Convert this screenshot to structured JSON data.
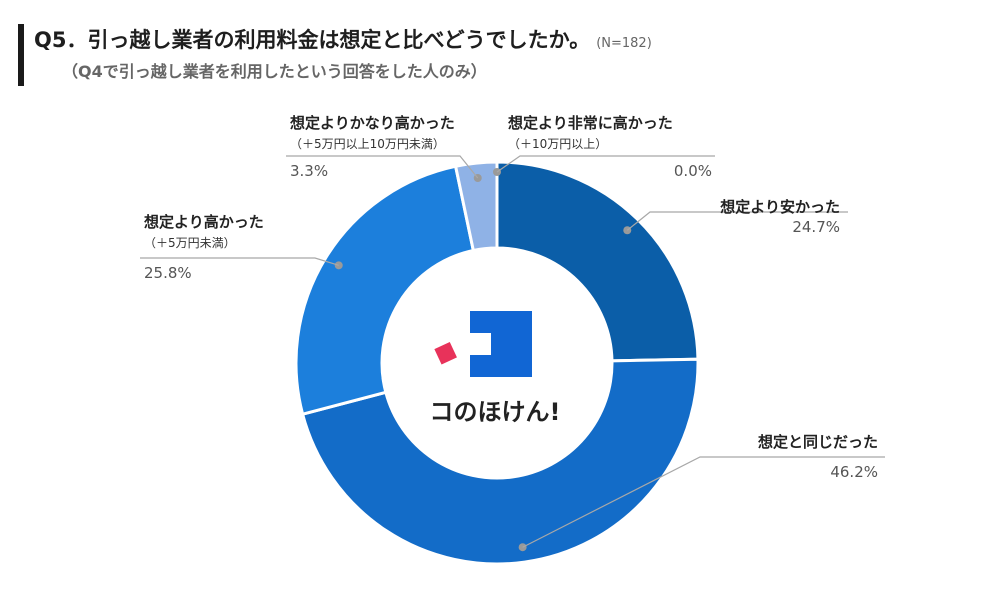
{
  "header": {
    "title": "Q5．引っ越し業者の利用料金は想定と比べどうでしたか。",
    "n_label": "(N=182)",
    "subtitle": "（Q4で引っ越し業者を利用したという回答をした人のみ）"
  },
  "logo": {
    "text": "コのほけん!"
  },
  "chart_data": {
    "type": "pie",
    "donut": true,
    "title": "Q5．引っ越し業者の利用料金は想定と比べどうでしたか。",
    "n": 182,
    "slices": [
      {
        "label": "想定より安かった",
        "sublabel": "",
        "value": 24.7,
        "pct_label": "24.7%",
        "color": "#0b5ea8"
      },
      {
        "label": "想定と同じだった",
        "sublabel": "",
        "value": 46.2,
        "pct_label": "46.2%",
        "color": "#136cc8"
      },
      {
        "label": "想定より高かった",
        "sublabel": "（＋5万円未満）",
        "value": 25.8,
        "pct_label": "25.8%",
        "color": "#1c7fdc"
      },
      {
        "label": "想定よりかなり高かった",
        "sublabel": "（＋5万円以上10万円未満）",
        "value": 3.3,
        "pct_label": "3.3%",
        "color": "#8fb2e6"
      },
      {
        "label": "想定より非常に高かった",
        "sublabel": "（＋10万円以上）",
        "value": 0.0,
        "pct_label": "0.0%",
        "color": "#c9d9f2"
      }
    ]
  }
}
